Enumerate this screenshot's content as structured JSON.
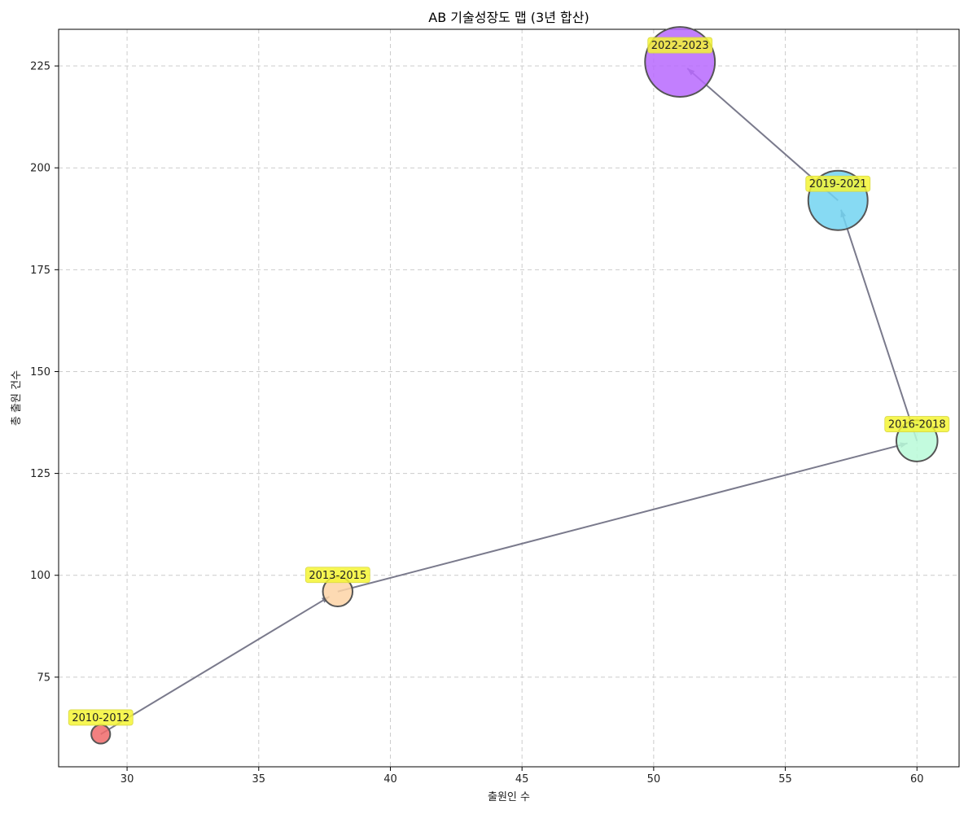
{
  "chart_data": {
    "type": "scatter",
    "title": "AB 기술성장도 맵 (3년 합산)",
    "xlabel": "출원인 수",
    "ylabel": "총 출원 건수",
    "xlim": [
      27.4,
      61.6
    ],
    "ylim": [
      53,
      234
    ],
    "xticks": [
      30,
      35,
      40,
      45,
      50,
      55,
      60
    ],
    "yticks": [
      75,
      100,
      125,
      150,
      175,
      200,
      225
    ],
    "grid": true,
    "connected": true,
    "points": [
      {
        "label": "2010-2012",
        "x": 29,
        "y": 61,
        "color": "#f06a6a"
      },
      {
        "label": "2013-2015",
        "x": 38,
        "y": 96,
        "color": "#fdd3a6"
      },
      {
        "label": "2016-2018",
        "x": 60,
        "y": 133,
        "color": "#b8fad8"
      },
      {
        "label": "2019-2021",
        "x": 57,
        "y": 192,
        "color": "#72d4f1"
      },
      {
        "label": "2022-2023",
        "x": 51,
        "y": 226,
        "color": "#b768fe"
      }
    ],
    "label_highlight_color": "#f5f534",
    "arrow_color": "#7a7a8c"
  }
}
